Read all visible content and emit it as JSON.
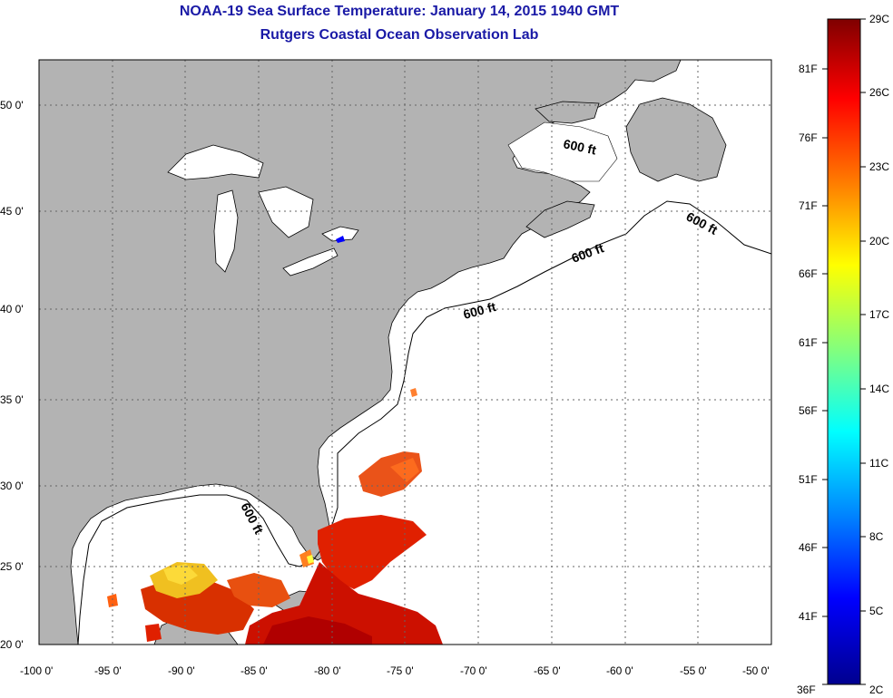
{
  "title": "NOAA-19 Sea Surface Temperature:  January 14, 2015 1940 GMT",
  "subtitle": "Rutgers Coastal Ocean Observation Lab",
  "lon_ticks": [
    "-100 0'",
    "-95 0'",
    "-90 0'",
    "-85 0'",
    "-80 0'",
    "-75 0'",
    "-70 0'",
    "-65 0'",
    "-60 0'",
    "-55 0'",
    "-50 0'"
  ],
  "lat_ticks": [
    "50 0'",
    "45 0'",
    "40 0'",
    "35 0'",
    "30 0'",
    "25 0'",
    "20 0'"
  ],
  "contour_label": "600 ft",
  "colorbar": {
    "celsius": [
      "29C",
      "26C",
      "23C",
      "20C",
      "17C",
      "14C",
      "11C",
      "8C",
      "5C",
      "2C"
    ],
    "fahrenheit": [
      "81F",
      "76F",
      "71F",
      "66F",
      "61F",
      "56F",
      "51F",
      "46F",
      "41F",
      "36F"
    ],
    "colors": [
      "#7f0000",
      "#ff0000",
      "#ff8000",
      "#ffff00",
      "#80ff80",
      "#00ffff",
      "#0080ff",
      "#0000ff",
      "#00008f"
    ]
  },
  "colors": {
    "land": "#b3b3b3",
    "ocean": "#ffffff",
    "title": "#1a1aa6",
    "grid": "#666666"
  }
}
